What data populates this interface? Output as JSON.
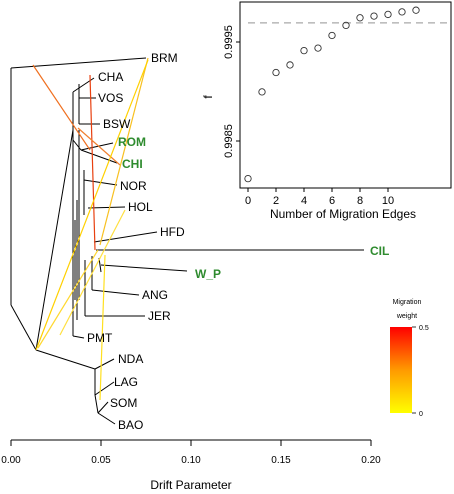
{
  "chart_data": [
    {
      "type": "tree",
      "xlabel": "Drift Parameter",
      "xticks": [
        "0.00",
        "0.05",
        "0.10",
        "0.15",
        "0.20"
      ],
      "xlim": [
        0.0,
        0.2
      ],
      "leaves": [
        {
          "name": "BRM",
          "drift_x": 0.076,
          "highlight": false
        },
        {
          "name": "CHA",
          "drift_x": 0.047,
          "highlight": false
        },
        {
          "name": "VOS",
          "drift_x": 0.046,
          "highlight": false
        },
        {
          "name": "BSW",
          "drift_x": 0.06,
          "highlight": false
        },
        {
          "name": "ROM",
          "drift_x": 0.043,
          "highlight": true
        },
        {
          "name": "CHI",
          "drift_x": 0.043,
          "highlight": true
        },
        {
          "name": "NOR",
          "drift_x": 0.045,
          "highlight": false
        },
        {
          "name": "HOL",
          "drift_x": 0.061,
          "highlight": false
        },
        {
          "name": "HFD",
          "drift_x": 0.08,
          "highlight": false
        },
        {
          "name": "CIL",
          "drift_x": 0.197,
          "highlight": true
        },
        {
          "name": "W_P",
          "drift_x": 0.088,
          "highlight": true
        },
        {
          "name": "ANG",
          "drift_x": 0.06,
          "highlight": false
        },
        {
          "name": "JER",
          "drift_x": 0.073,
          "highlight": false
        },
        {
          "name": "PMT",
          "drift_x": 0.04,
          "highlight": false
        },
        {
          "name": "NDA",
          "drift_x": 0.061,
          "highlight": false
        },
        {
          "name": "LAG",
          "drift_x": 0.058,
          "highlight": false
        },
        {
          "name": "SOM",
          "drift_x": 0.053,
          "highlight": false
        },
        {
          "name": "BAO",
          "drift_x": 0.058,
          "highlight": false
        }
      ],
      "legend": {
        "title_line1": "Migration",
        "title_line2": "weight",
        "max_label": "0.5",
        "min_label": "0"
      }
    },
    {
      "type": "scatter",
      "xlabel": "Number of Migration Edges",
      "ylabel": "f",
      "xticks": [
        "0",
        "2",
        "4",
        "6",
        "8",
        "10"
      ],
      "yticks": [
        "0.9985",
        "0.9995"
      ],
      "ylim": [
        0.99776,
        0.99985
      ],
      "threshold": 0.99965,
      "x": [
        0,
        1,
        2,
        3,
        4,
        5,
        6,
        7,
        8,
        9,
        10,
        11,
        12
      ],
      "values": [
        0.9978,
        0.99883,
        0.99906,
        0.99915,
        0.99932,
        0.99935,
        0.9995,
        0.99962,
        0.99971,
        0.99973,
        0.99975,
        0.99978,
        0.9998
      ]
    }
  ],
  "colors": {
    "highlight": "#2e8b2e",
    "dashed": "#a9a9a9",
    "tree": "#000000"
  }
}
